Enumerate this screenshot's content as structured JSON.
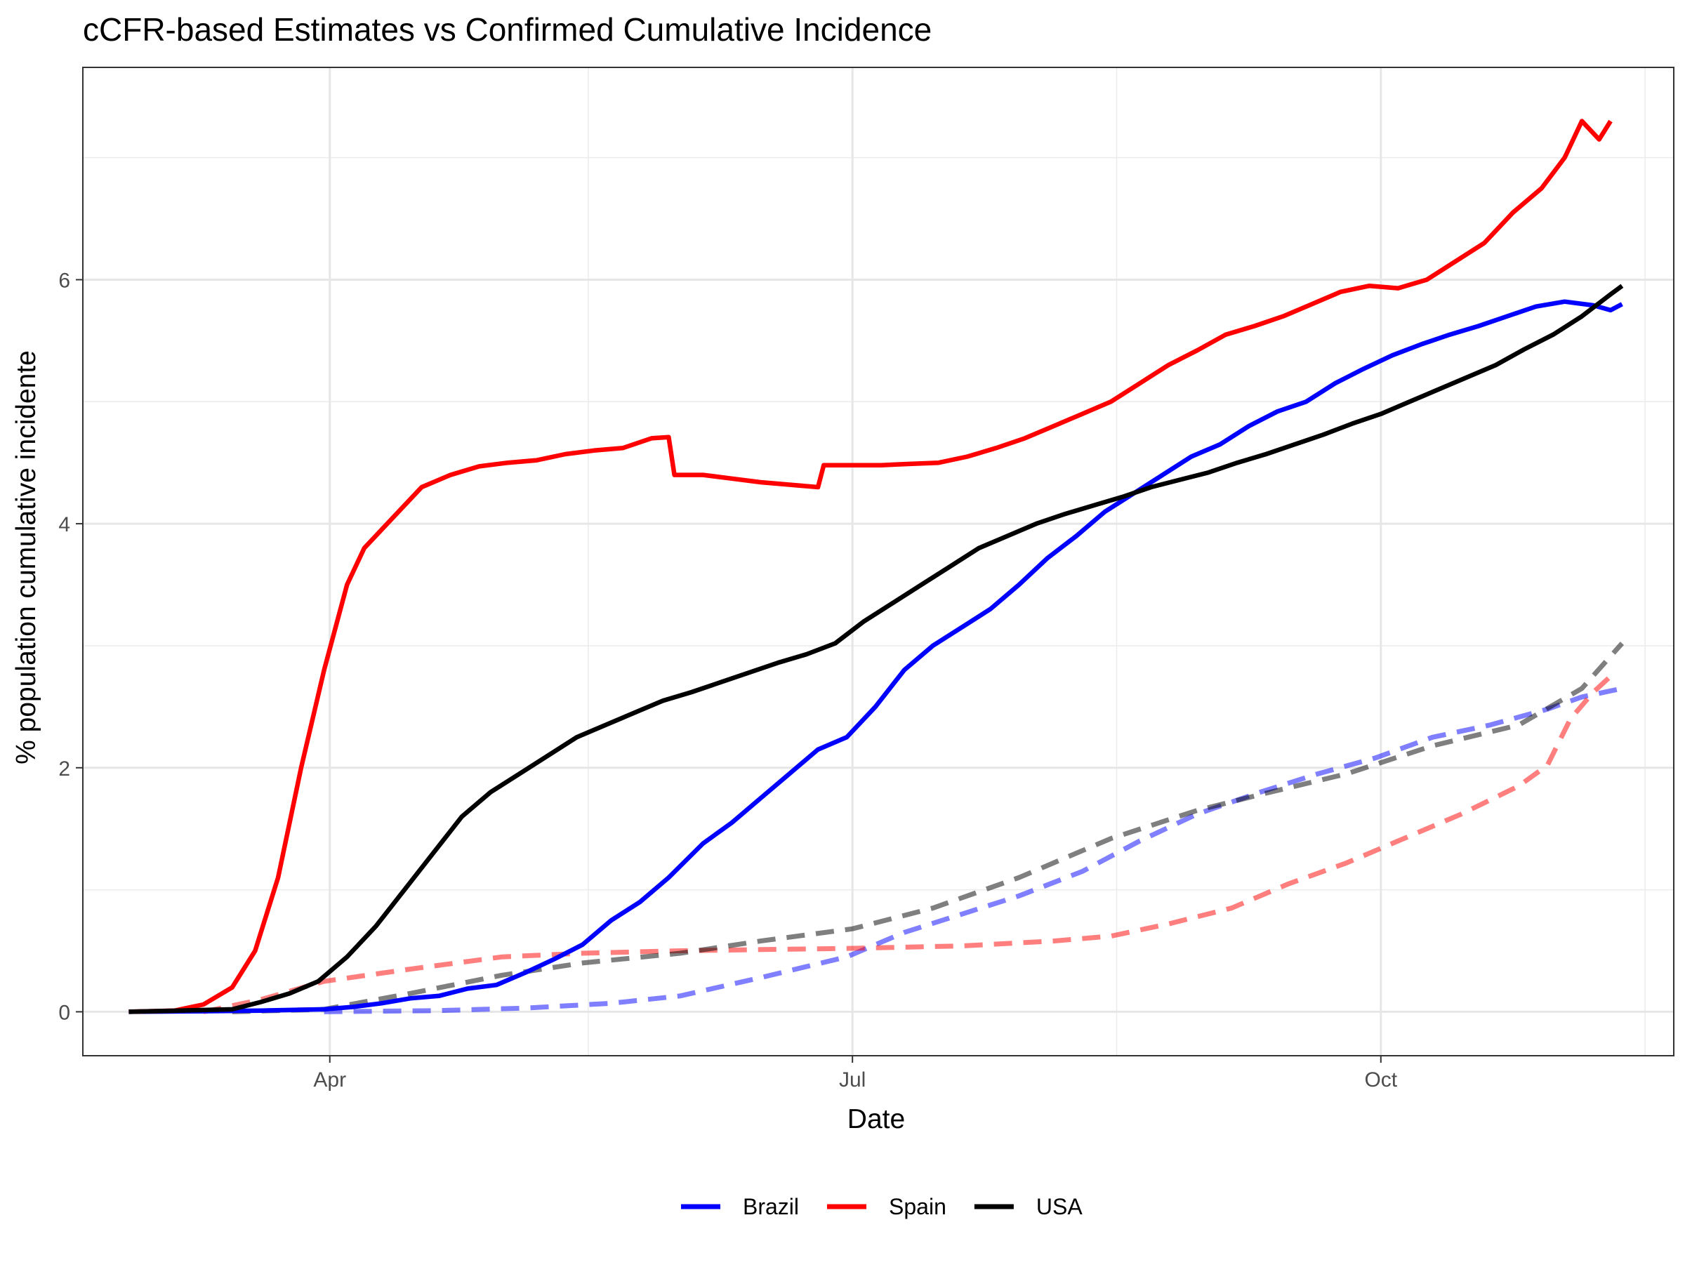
{
  "chart_data": {
    "type": "line",
    "title": "cCFR-based Estimates vs Confirmed Cumulative Incidence",
    "xlabel": "Date",
    "ylabel": "% population cumulative incidente",
    "x_ticks": [
      {
        "label": "Apr",
        "date": "2020-04-01"
      },
      {
        "label": "Jul",
        "date": "2020-07-01"
      },
      {
        "label": "Oct",
        "date": "2020-10-01"
      }
    ],
    "x_minor_ticks": [
      "2020-05-16",
      "2020-08-16",
      "2020-11-16"
    ],
    "xlim": [
      "2020-02-18",
      "2020-11-21"
    ],
    "y_ticks": [
      0,
      2,
      4,
      6
    ],
    "ylim": [
      -0.36,
      7.74
    ],
    "grid": true,
    "legend": {
      "position": "bottom",
      "items": [
        {
          "label": "Brazil",
          "color": "#0000ff"
        },
        {
          "label": "Spain",
          "color": "#ff0000"
        },
        {
          "label": "USA",
          "color": "#000000"
        }
      ]
    },
    "series": [
      {
        "name": "Brazil",
        "style": "solid",
        "color": "#0000ff",
        "points": [
          [
            "2020-02-26",
            0
          ],
          [
            "2020-03-10",
            0.005
          ],
          [
            "2020-03-20",
            0.01
          ],
          [
            "2020-03-31",
            0.02
          ],
          [
            "2020-04-05",
            0.04
          ],
          [
            "2020-04-10",
            0.07
          ],
          [
            "2020-04-15",
            0.11
          ],
          [
            "2020-04-20",
            0.13
          ],
          [
            "2020-04-25",
            0.19
          ],
          [
            "2020-04-30",
            0.22
          ],
          [
            "2020-05-05",
            0.32
          ],
          [
            "2020-05-10",
            0.43
          ],
          [
            "2020-05-15",
            0.55
          ],
          [
            "2020-05-20",
            0.75
          ],
          [
            "2020-05-25",
            0.9
          ],
          [
            "2020-05-30",
            1.1
          ],
          [
            "2020-06-05",
            1.38
          ],
          [
            "2020-06-10",
            1.55
          ],
          [
            "2020-06-15",
            1.75
          ],
          [
            "2020-06-20",
            1.95
          ],
          [
            "2020-06-25",
            2.15
          ],
          [
            "2020-06-30",
            2.25
          ],
          [
            "2020-07-05",
            2.5
          ],
          [
            "2020-07-10",
            2.8
          ],
          [
            "2020-07-15",
            3.0
          ],
          [
            "2020-07-20",
            3.15
          ],
          [
            "2020-07-25",
            3.3
          ],
          [
            "2020-07-30",
            3.5
          ],
          [
            "2020-08-04",
            3.72
          ],
          [
            "2020-08-09",
            3.9
          ],
          [
            "2020-08-14",
            4.1
          ],
          [
            "2020-08-19",
            4.25
          ],
          [
            "2020-08-24",
            4.4
          ],
          [
            "2020-08-29",
            4.55
          ],
          [
            "2020-09-03",
            4.65
          ],
          [
            "2020-09-08",
            4.8
          ],
          [
            "2020-09-13",
            4.92
          ],
          [
            "2020-09-18",
            5.0
          ],
          [
            "2020-09-23",
            5.15
          ],
          [
            "2020-09-28",
            5.27
          ],
          [
            "2020-10-03",
            5.38
          ],
          [
            "2020-10-08",
            5.47
          ],
          [
            "2020-10-13",
            5.55
          ],
          [
            "2020-10-18",
            5.62
          ],
          [
            "2020-10-23",
            5.7
          ],
          [
            "2020-10-28",
            5.78
          ],
          [
            "2020-11-02",
            5.82
          ],
          [
            "2020-11-07",
            5.79
          ],
          [
            "2020-11-10",
            5.75
          ],
          [
            "2020-11-12",
            5.8
          ]
        ]
      },
      {
        "name": "Spain",
        "style": "solid",
        "color": "#ff0000",
        "points": [
          [
            "2020-02-26",
            0
          ],
          [
            "2020-03-05",
            0.01
          ],
          [
            "2020-03-10",
            0.06
          ],
          [
            "2020-03-15",
            0.2
          ],
          [
            "2020-03-19",
            0.5
          ],
          [
            "2020-03-23",
            1.1
          ],
          [
            "2020-03-27",
            2.0
          ],
          [
            "2020-03-31",
            2.8
          ],
          [
            "2020-04-04",
            3.5
          ],
          [
            "2020-04-07",
            3.8
          ],
          [
            "2020-04-12",
            4.05
          ],
          [
            "2020-04-17",
            4.3
          ],
          [
            "2020-04-22",
            4.4
          ],
          [
            "2020-04-27",
            4.47
          ],
          [
            "2020-05-02",
            4.5
          ],
          [
            "2020-05-07",
            4.52
          ],
          [
            "2020-05-12",
            4.57
          ],
          [
            "2020-05-17",
            4.6
          ],
          [
            "2020-05-22",
            4.62
          ],
          [
            "2020-05-27",
            4.7
          ],
          [
            "2020-05-30",
            4.71
          ],
          [
            "2020-05-31",
            4.4
          ],
          [
            "2020-06-05",
            4.4
          ],
          [
            "2020-06-10",
            4.37
          ],
          [
            "2020-06-15",
            4.34
          ],
          [
            "2020-06-20",
            4.32
          ],
          [
            "2020-06-25",
            4.3
          ],
          [
            "2020-06-26",
            4.48
          ],
          [
            "2020-07-01",
            4.48
          ],
          [
            "2020-07-06",
            4.48
          ],
          [
            "2020-07-11",
            4.49
          ],
          [
            "2020-07-16",
            4.5
          ],
          [
            "2020-07-21",
            4.55
          ],
          [
            "2020-07-26",
            4.62
          ],
          [
            "2020-07-31",
            4.7
          ],
          [
            "2020-08-05",
            4.8
          ],
          [
            "2020-08-10",
            4.9
          ],
          [
            "2020-08-15",
            5.0
          ],
          [
            "2020-08-20",
            5.15
          ],
          [
            "2020-08-25",
            5.3
          ],
          [
            "2020-08-30",
            5.42
          ],
          [
            "2020-09-04",
            5.55
          ],
          [
            "2020-09-09",
            5.62
          ],
          [
            "2020-09-14",
            5.7
          ],
          [
            "2020-09-19",
            5.8
          ],
          [
            "2020-09-24",
            5.9
          ],
          [
            "2020-09-29",
            5.95
          ],
          [
            "2020-10-04",
            5.93
          ],
          [
            "2020-10-09",
            6.0
          ],
          [
            "2020-10-14",
            6.15
          ],
          [
            "2020-10-19",
            6.3
          ],
          [
            "2020-10-24",
            6.55
          ],
          [
            "2020-10-29",
            6.75
          ],
          [
            "2020-11-02",
            7.0
          ],
          [
            "2020-11-05",
            7.3
          ],
          [
            "2020-11-08",
            7.15
          ],
          [
            "2020-11-10",
            7.3
          ]
        ]
      },
      {
        "name": "USA",
        "style": "solid",
        "color": "#000000",
        "points": [
          [
            "2020-02-26",
            0
          ],
          [
            "2020-03-15",
            0.02
          ],
          [
            "2020-03-20",
            0.08
          ],
          [
            "2020-03-25",
            0.15
          ],
          [
            "2020-03-30",
            0.25
          ],
          [
            "2020-04-04",
            0.45
          ],
          [
            "2020-04-09",
            0.7
          ],
          [
            "2020-04-14",
            1.0
          ],
          [
            "2020-04-19",
            1.3
          ],
          [
            "2020-04-24",
            1.6
          ],
          [
            "2020-04-29",
            1.8
          ],
          [
            "2020-05-04",
            1.95
          ],
          [
            "2020-05-09",
            2.1
          ],
          [
            "2020-05-14",
            2.25
          ],
          [
            "2020-05-19",
            2.35
          ],
          [
            "2020-05-24",
            2.45
          ],
          [
            "2020-05-29",
            2.55
          ],
          [
            "2020-06-03",
            2.62
          ],
          [
            "2020-06-08",
            2.7
          ],
          [
            "2020-06-13",
            2.78
          ],
          [
            "2020-06-18",
            2.86
          ],
          [
            "2020-06-23",
            2.93
          ],
          [
            "2020-06-28",
            3.02
          ],
          [
            "2020-07-03",
            3.2
          ],
          [
            "2020-07-08",
            3.35
          ],
          [
            "2020-07-13",
            3.5
          ],
          [
            "2020-07-18",
            3.65
          ],
          [
            "2020-07-23",
            3.8
          ],
          [
            "2020-07-28",
            3.9
          ],
          [
            "2020-08-02",
            4.0
          ],
          [
            "2020-08-07",
            4.08
          ],
          [
            "2020-08-12",
            4.15
          ],
          [
            "2020-08-17",
            4.22
          ],
          [
            "2020-08-22",
            4.3
          ],
          [
            "2020-08-27",
            4.36
          ],
          [
            "2020-09-01",
            4.42
          ],
          [
            "2020-09-06",
            4.5
          ],
          [
            "2020-09-11",
            4.57
          ],
          [
            "2020-09-16",
            4.65
          ],
          [
            "2020-09-21",
            4.73
          ],
          [
            "2020-09-26",
            4.82
          ],
          [
            "2020-10-01",
            4.9
          ],
          [
            "2020-10-06",
            5.0
          ],
          [
            "2020-10-11",
            5.1
          ],
          [
            "2020-10-16",
            5.2
          ],
          [
            "2020-10-21",
            5.3
          ],
          [
            "2020-10-26",
            5.43
          ],
          [
            "2020-10-31",
            5.55
          ],
          [
            "2020-11-05",
            5.7
          ],
          [
            "2020-11-10",
            5.88
          ],
          [
            "2020-11-12",
            5.95
          ]
        ]
      },
      {
        "name": "Brazil",
        "style": "dashed",
        "color": "#0000ff",
        "points": [
          [
            "2020-03-31",
            0
          ],
          [
            "2020-04-20",
            0.01
          ],
          [
            "2020-05-05",
            0.03
          ],
          [
            "2020-05-20",
            0.07
          ],
          [
            "2020-06-01",
            0.13
          ],
          [
            "2020-06-15",
            0.28
          ],
          [
            "2020-06-30",
            0.45
          ],
          [
            "2020-07-10",
            0.65
          ],
          [
            "2020-07-20",
            0.8
          ],
          [
            "2020-07-30",
            0.95
          ],
          [
            "2020-08-10",
            1.15
          ],
          [
            "2020-08-20",
            1.4
          ],
          [
            "2020-08-30",
            1.62
          ],
          [
            "2020-09-10",
            1.8
          ],
          [
            "2020-09-20",
            1.95
          ],
          [
            "2020-09-30",
            2.08
          ],
          [
            "2020-10-10",
            2.25
          ],
          [
            "2020-10-20",
            2.35
          ],
          [
            "2020-10-30",
            2.48
          ],
          [
            "2020-11-05",
            2.58
          ],
          [
            "2020-11-12",
            2.65
          ]
        ]
      },
      {
        "name": "Spain",
        "style": "dashed",
        "color": "#ff0000",
        "points": [
          [
            "2020-03-10",
            0
          ],
          [
            "2020-03-20",
            0.1
          ],
          [
            "2020-03-31",
            0.25
          ],
          [
            "2020-04-15",
            0.35
          ],
          [
            "2020-05-01",
            0.45
          ],
          [
            "2020-05-15",
            0.48
          ],
          [
            "2020-06-01",
            0.5
          ],
          [
            "2020-06-15",
            0.51
          ],
          [
            "2020-07-01",
            0.52
          ],
          [
            "2020-07-20",
            0.54
          ],
          [
            "2020-08-05",
            0.58
          ],
          [
            "2020-08-15",
            0.62
          ],
          [
            "2020-08-25",
            0.72
          ],
          [
            "2020-09-05",
            0.85
          ],
          [
            "2020-09-15",
            1.05
          ],
          [
            "2020-09-25",
            1.22
          ],
          [
            "2020-10-05",
            1.42
          ],
          [
            "2020-10-15",
            1.62
          ],
          [
            "2020-10-25",
            1.85
          ],
          [
            "2020-10-30",
            2.02
          ],
          [
            "2020-11-03",
            2.4
          ],
          [
            "2020-11-07",
            2.62
          ],
          [
            "2020-11-10",
            2.75
          ]
        ]
      },
      {
        "name": "USA",
        "style": "dashed",
        "color": "#000000",
        "points": [
          [
            "2020-03-15",
            0
          ],
          [
            "2020-03-31",
            0.02
          ],
          [
            "2020-04-15",
            0.15
          ],
          [
            "2020-05-01",
            0.3
          ],
          [
            "2020-05-15",
            0.4
          ],
          [
            "2020-06-01",
            0.48
          ],
          [
            "2020-06-15",
            0.58
          ],
          [
            "2020-07-01",
            0.68
          ],
          [
            "2020-07-15",
            0.85
          ],
          [
            "2020-07-30",
            1.1
          ],
          [
            "2020-08-15",
            1.42
          ],
          [
            "2020-08-30",
            1.65
          ],
          [
            "2020-09-10",
            1.78
          ],
          [
            "2020-09-25",
            1.95
          ],
          [
            "2020-10-10",
            2.18
          ],
          [
            "2020-10-25",
            2.35
          ],
          [
            "2020-11-05",
            2.65
          ],
          [
            "2020-11-12",
            3.02
          ]
        ]
      }
    ]
  }
}
